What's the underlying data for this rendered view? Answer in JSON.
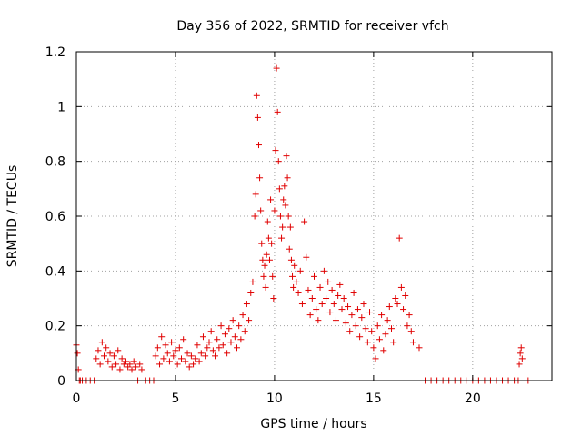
{
  "chart_data": {
    "type": "scatter",
    "title": "Day 356 of 2022, SRMTID for receiver vfch",
    "xlabel": "GPS time / hours",
    "ylabel": "SRMTID / TECUs",
    "xlim": [
      0,
      24
    ],
    "ylim": [
      0,
      1.2
    ],
    "grid": true,
    "marker": "+",
    "color": "#e00000",
    "xticks": [
      0,
      5,
      10,
      15,
      20
    ],
    "xtick_labels": [
      "0",
      "5",
      "10",
      "15",
      "20"
    ],
    "yticks": [
      0,
      0.2,
      0.4,
      0.6,
      0.8,
      1.0,
      1.2
    ],
    "ytick_labels": [
      "0",
      "0.2",
      "0.4",
      "0.6",
      "0.8",
      "1",
      "1.2"
    ],
    "series": [
      {
        "name": "SRMTID",
        "x": [
          0.0,
          0.05,
          0.1,
          0.15,
          0.2,
          0.3,
          0.5,
          0.7,
          0.9,
          1.0,
          1.1,
          1.2,
          1.3,
          1.4,
          1.5,
          1.6,
          1.7,
          1.8,
          1.9,
          2.0,
          2.1,
          2.2,
          2.3,
          2.4,
          2.5,
          2.6,
          2.7,
          2.8,
          2.9,
          3.0,
          3.1,
          3.2,
          3.3,
          3.5,
          3.7,
          3.9,
          4.0,
          4.1,
          4.2,
          4.3,
          4.4,
          4.5,
          4.6,
          4.7,
          4.8,
          4.9,
          5.0,
          5.1,
          5.2,
          5.3,
          5.4,
          5.5,
          5.6,
          5.7,
          5.8,
          5.9,
          6.0,
          6.1,
          6.2,
          6.3,
          6.4,
          6.5,
          6.6,
          6.7,
          6.8,
          6.9,
          7.0,
          7.1,
          7.2,
          7.3,
          7.4,
          7.5,
          7.6,
          7.7,
          7.8,
          7.9,
          8.0,
          8.1,
          8.2,
          8.3,
          8.4,
          8.5,
          8.6,
          8.7,
          8.8,
          8.9,
          9.0,
          9.05,
          9.1,
          9.15,
          9.2,
          9.25,
          9.3,
          9.35,
          9.4,
          9.45,
          9.5,
          9.55,
          9.6,
          9.65,
          9.7,
          9.75,
          9.8,
          9.85,
          9.9,
          9.95,
          10.0,
          10.05,
          10.1,
          10.15,
          10.2,
          10.25,
          10.3,
          10.35,
          10.4,
          10.45,
          10.5,
          10.55,
          10.6,
          10.65,
          10.7,
          10.75,
          10.8,
          10.85,
          10.9,
          10.95,
          11.0,
          11.1,
          11.2,
          11.3,
          11.4,
          11.5,
          11.6,
          11.7,
          11.8,
          11.9,
          12.0,
          12.1,
          12.2,
          12.3,
          12.4,
          12.5,
          12.6,
          12.7,
          12.8,
          12.9,
          13.0,
          13.1,
          13.2,
          13.3,
          13.4,
          13.5,
          13.6,
          13.7,
          13.8,
          13.9,
          14.0,
          14.1,
          14.2,
          14.3,
          14.4,
          14.5,
          14.6,
          14.7,
          14.8,
          14.9,
          15.0,
          15.1,
          15.2,
          15.3,
          15.4,
          15.5,
          15.6,
          15.7,
          15.8,
          15.9,
          16.0,
          16.1,
          16.2,
          16.3,
          16.4,
          16.5,
          16.6,
          16.7,
          16.8,
          16.9,
          17.0,
          17.3,
          17.6,
          17.9,
          18.2,
          18.5,
          18.8,
          19.1,
          19.4,
          19.7,
          20.0,
          20.3,
          20.6,
          20.9,
          21.2,
          21.5,
          21.8,
          22.1,
          22.3,
          22.35,
          22.4,
          22.45,
          22.5,
          22.8
        ],
        "y": [
          0.13,
          0.1,
          0.04,
          0.0,
          0.0,
          0.0,
          0.0,
          0.0,
          0.0,
          0.08,
          0.11,
          0.06,
          0.14,
          0.09,
          0.12,
          0.07,
          0.1,
          0.05,
          0.09,
          0.06,
          0.11,
          0.04,
          0.08,
          0.06,
          0.07,
          0.05,
          0.06,
          0.04,
          0.07,
          0.05,
          0.0,
          0.06,
          0.04,
          0.0,
          0.0,
          0.0,
          0.09,
          0.12,
          0.06,
          0.16,
          0.08,
          0.13,
          0.1,
          0.07,
          0.14,
          0.09,
          0.11,
          0.06,
          0.12,
          0.08,
          0.15,
          0.07,
          0.1,
          0.05,
          0.09,
          0.06,
          0.08,
          0.13,
          0.07,
          0.1,
          0.16,
          0.09,
          0.12,
          0.14,
          0.18,
          0.11,
          0.09,
          0.15,
          0.12,
          0.2,
          0.13,
          0.17,
          0.1,
          0.19,
          0.14,
          0.22,
          0.16,
          0.12,
          0.2,
          0.15,
          0.24,
          0.18,
          0.28,
          0.22,
          0.32,
          0.36,
          0.6,
          0.68,
          1.04,
          0.96,
          0.86,
          0.74,
          0.62,
          0.5,
          0.44,
          0.38,
          0.42,
          0.34,
          0.46,
          0.58,
          0.52,
          0.44,
          0.66,
          0.5,
          0.38,
          0.3,
          0.62,
          0.84,
          1.14,
          0.98,
          0.8,
          0.7,
          0.6,
          0.52,
          0.56,
          0.66,
          0.71,
          0.64,
          0.82,
          0.74,
          0.6,
          0.48,
          0.56,
          0.44,
          0.38,
          0.34,
          0.42,
          0.36,
          0.32,
          0.4,
          0.28,
          0.58,
          0.45,
          0.33,
          0.24,
          0.3,
          0.38,
          0.26,
          0.22,
          0.34,
          0.28,
          0.4,
          0.3,
          0.36,
          0.25,
          0.33,
          0.28,
          0.22,
          0.31,
          0.35,
          0.26,
          0.3,
          0.21,
          0.27,
          0.18,
          0.24,
          0.32,
          0.2,
          0.26,
          0.16,
          0.23,
          0.28,
          0.19,
          0.14,
          0.25,
          0.18,
          0.12,
          0.08,
          0.2,
          0.15,
          0.24,
          0.11,
          0.17,
          0.22,
          0.27,
          0.19,
          0.14,
          0.3,
          0.28,
          0.52,
          0.34,
          0.26,
          0.31,
          0.2,
          0.24,
          0.18,
          0.14,
          0.12,
          0.0,
          0.0,
          0.0,
          0.0,
          0.0,
          0.0,
          0.0,
          0.0,
          0.0,
          0.0,
          0.0,
          0.0,
          0.0,
          0.0,
          0.0,
          0.0,
          0.0,
          0.06,
          0.1,
          0.12,
          0.08,
          0.0
        ]
      }
    ]
  }
}
